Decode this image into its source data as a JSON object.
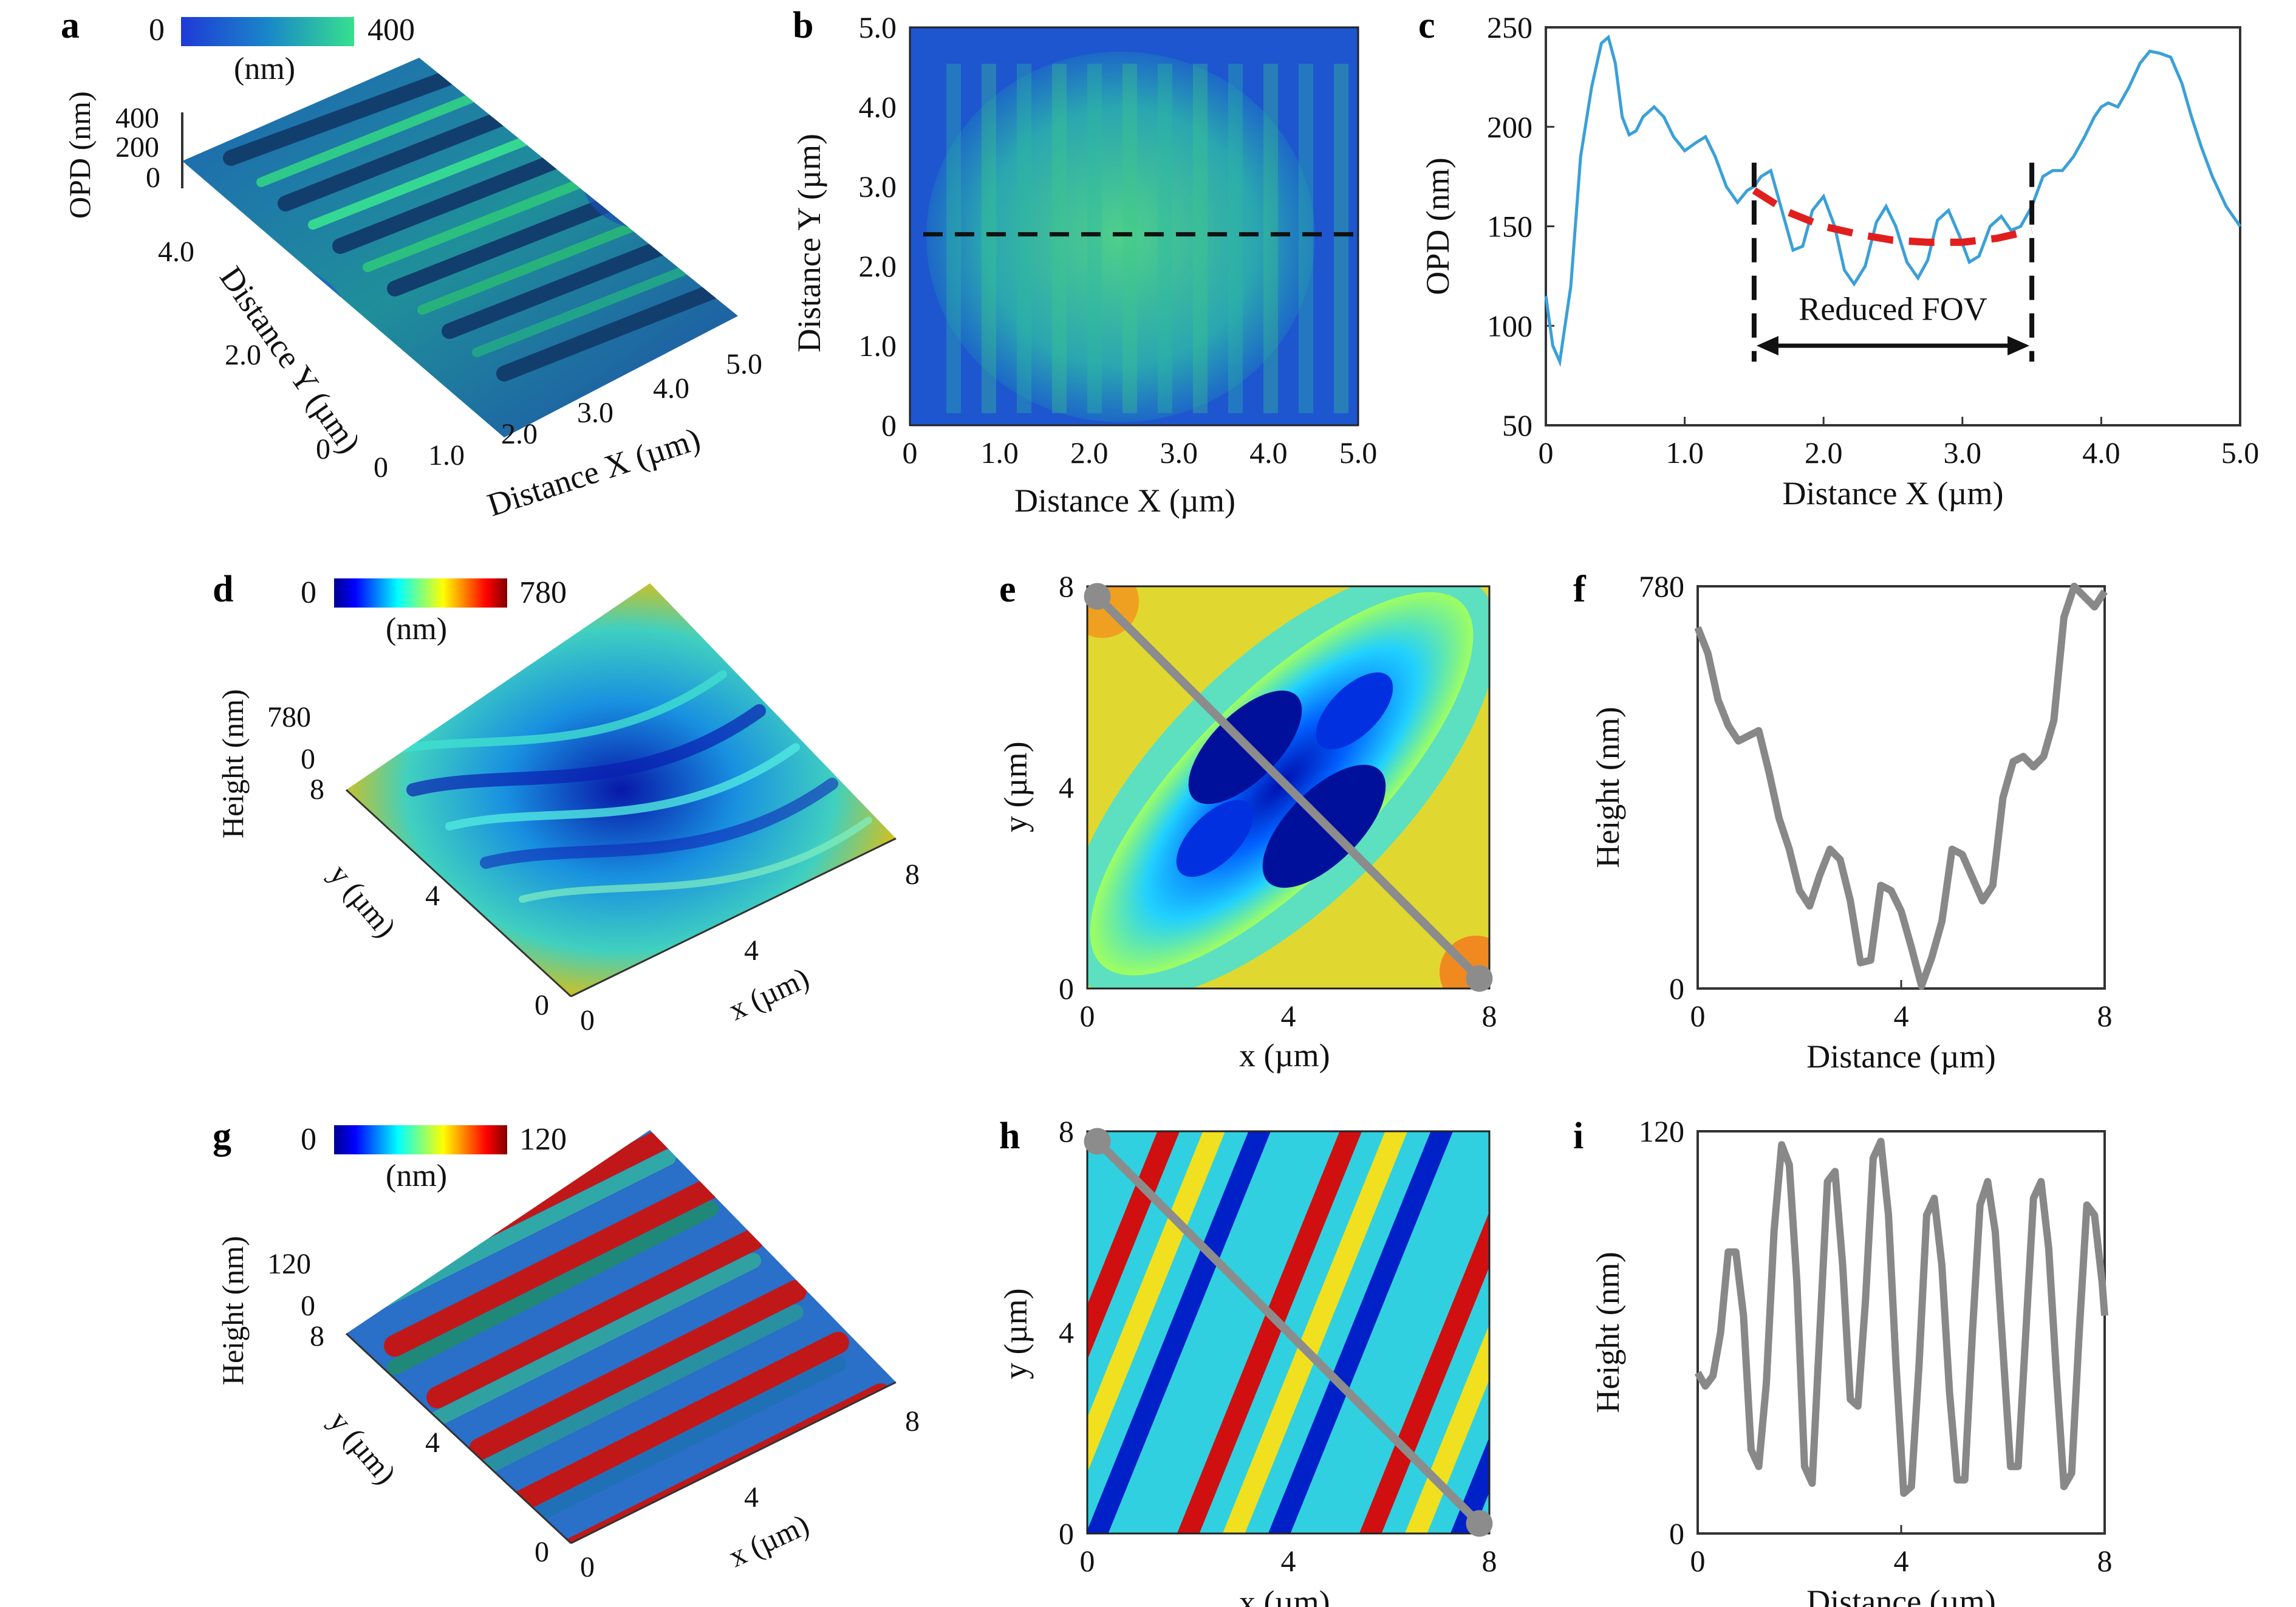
{
  "panels": {
    "a": {
      "letter": "a",
      "cbar_min": "0",
      "cbar_max": "400",
      "cbar_unit": "(nm)",
      "zlabel": "OPD (nm)",
      "zticks": [
        "400",
        "200",
        "0"
      ],
      "ylabel": "Distance Y (µm)",
      "yticks": [
        "0",
        "2.0",
        "4.0"
      ],
      "xlabel": "Distance X (µm)",
      "xticks": [
        "0",
        "1.0",
        "2.0",
        "3.0",
        "4.0",
        "5.0"
      ]
    },
    "b": {
      "letter": "b",
      "ylabel": "Distance Y (µm)",
      "xlabel": "Distance X (µm)",
      "yticks": [
        "0",
        "1.0",
        "2.0",
        "3.0",
        "4.0",
        "5.0"
      ],
      "xticks": [
        "0",
        "1.0",
        "2.0",
        "3.0",
        "4.0",
        "5.0"
      ]
    },
    "c": {
      "letter": "c",
      "annotation": "Reduced FOV"
    },
    "d": {
      "letter": "d",
      "cbar_min": "0",
      "cbar_max": "780",
      "cbar_unit": "(nm)",
      "zlabel": "Height (nm)",
      "zticks": [
        "780",
        "0"
      ],
      "ylabel": "y (µm)",
      "yticks": [
        "0",
        "4",
        "8"
      ],
      "xlabel": "x (µm)",
      "xticks": [
        "0",
        "4",
        "8"
      ]
    },
    "e": {
      "letter": "e",
      "xlabel": "x (µm)",
      "ylabel": "y (µm)",
      "xticks": [
        "0",
        "4",
        "8"
      ],
      "yticks": [
        "0",
        "4",
        "8"
      ]
    },
    "f": {
      "letter": "f"
    },
    "g": {
      "letter": "g",
      "cbar_min": "0",
      "cbar_max": "120",
      "cbar_unit": "(nm)",
      "zlabel": "Height (nm)",
      "zticks": [
        "120",
        "0"
      ],
      "ylabel": "y (µm)",
      "yticks": [
        "0",
        "4",
        "8"
      ],
      "xlabel": "x (µm)",
      "xticks": [
        "0",
        "4",
        "8"
      ]
    },
    "h": {
      "letter": "h",
      "xlabel": "x (µm)",
      "ylabel": "y (µm)",
      "xticks": [
        "0",
        "4",
        "8"
      ],
      "yticks": [
        "0",
        "4",
        "8"
      ]
    },
    "i": {
      "letter": "i"
    }
  },
  "chart_data": [
    {
      "type": "line",
      "panel": "c",
      "xlabel": "Distance X (µm)",
      "ylabel": "OPD (nm)",
      "xlim": [
        0,
        5
      ],
      "ylim": [
        50,
        250
      ],
      "xticks": [
        "0",
        "1.0",
        "2.0",
        "3.0",
        "4.0",
        "5.0"
      ],
      "yticks": [
        "50",
        "100",
        "150",
        "200",
        "250"
      ],
      "line_color": "#3aa0d8",
      "series": [
        {
          "x": [
            0,
            0.05,
            0.1,
            0.18,
            0.25,
            0.33,
            0.4,
            0.45,
            0.5,
            0.55,
            0.6,
            0.65,
            0.7,
            0.78,
            0.85,
            0.92,
            1.0,
            1.08,
            1.15,
            1.22,
            1.3,
            1.38,
            1.45,
            1.5,
            1.55,
            1.62,
            1.7,
            1.78,
            1.85,
            1.92,
            2.0,
            2.08,
            2.15,
            2.22,
            2.3,
            2.38,
            2.45,
            2.52,
            2.6,
            2.68,
            2.75,
            2.82,
            2.9,
            2.98,
            3.05,
            3.12,
            3.2,
            3.28,
            3.35,
            3.42,
            3.5,
            3.58,
            3.65,
            3.72,
            3.8,
            3.88,
            3.95,
            4.0,
            4.05,
            4.12,
            4.2,
            4.28,
            4.35,
            4.42,
            4.5,
            4.58,
            4.65,
            4.72,
            4.8,
            4.9,
            5.0
          ],
          "y": [
            115,
            90,
            82,
            120,
            185,
            220,
            242,
            245,
            232,
            205,
            196,
            198,
            205,
            210,
            205,
            195,
            188,
            192,
            195,
            185,
            170,
            162,
            168,
            170,
            175,
            178,
            158,
            138,
            140,
            158,
            165,
            150,
            128,
            121,
            130,
            152,
            160,
            150,
            132,
            124,
            133,
            153,
            158,
            145,
            132,
            135,
            150,
            155,
            148,
            150,
            160,
            175,
            178,
            178,
            185,
            195,
            205,
            210,
            212,
            210,
            220,
            232,
            238,
            237,
            235,
            222,
            205,
            190,
            175,
            160,
            150
          ]
        },
        {
          "name": "",
          "style": "dashed",
          "color": "#e11e1e",
          "x": [
            1.5,
            1.75,
            2.0,
            2.25,
            2.5,
            2.75,
            3.0,
            3.25,
            3.5
          ],
          "y": [
            168,
            157,
            150,
            146,
            143,
            142,
            142,
            144,
            148
          ]
        }
      ],
      "reduced_fov": [
        1.5,
        3.5
      ]
    },
    {
      "type": "line",
      "panel": "f",
      "xlabel": "Distance (µm)",
      "ylabel": "Height (nm)",
      "xlim": [
        0,
        8
      ],
      "ylim": [
        0,
        780
      ],
      "xticks": [
        "0",
        "4",
        "8"
      ],
      "yticks": [
        "0",
        "780"
      ],
      "line_color": "#888888",
      "series": [
        {
          "x": [
            0,
            0.2,
            0.4,
            0.6,
            0.8,
            1.0,
            1.2,
            1.4,
            1.6,
            1.8,
            2.0,
            2.2,
            2.4,
            2.6,
            2.8,
            3.0,
            3.2,
            3.4,
            3.6,
            3.8,
            4.0,
            4.2,
            4.4,
            4.6,
            4.8,
            5.0,
            5.2,
            5.4,
            5.6,
            5.8,
            6.0,
            6.2,
            6.4,
            6.6,
            6.8,
            7.0,
            7.2,
            7.4,
            7.6,
            7.8,
            8.0
          ],
          "y": [
            700,
            650,
            560,
            510,
            480,
            490,
            500,
            420,
            330,
            270,
            190,
            160,
            220,
            270,
            250,
            170,
            50,
            55,
            200,
            190,
            150,
            80,
            5,
            60,
            130,
            270,
            260,
            215,
            170,
            200,
            370,
            440,
            450,
            430,
            450,
            520,
            720,
            780,
            760,
            740,
            770
          ]
        }
      ]
    },
    {
      "type": "line",
      "panel": "i",
      "xlabel": "Distance (µm)",
      "ylabel": "Height (nm)",
      "xlim": [
        0,
        8
      ],
      "ylim": [
        0,
        120
      ],
      "xticks": [
        "0",
        "4",
        "8"
      ],
      "yticks": [
        "0",
        "120"
      ],
      "line_color": "#888888",
      "series": [
        {
          "x": [
            0,
            0.15,
            0.3,
            0.45,
            0.6,
            0.75,
            0.9,
            1.05,
            1.2,
            1.35,
            1.5,
            1.65,
            1.8,
            1.95,
            2.1,
            2.25,
            2.4,
            2.55,
            2.7,
            2.85,
            3.0,
            3.15,
            3.3,
            3.45,
            3.6,
            3.75,
            3.9,
            4.05,
            4.2,
            4.35,
            4.5,
            4.65,
            4.8,
            4.95,
            5.1,
            5.25,
            5.4,
            5.55,
            5.7,
            5.85,
            6.0,
            6.15,
            6.3,
            6.45,
            6.6,
            6.75,
            6.9,
            7.05,
            7.2,
            7.35,
            7.5,
            7.65,
            7.8,
            7.95,
            8.0
          ],
          "y": [
            48,
            44,
            47,
            60,
            84,
            84,
            65,
            25,
            20,
            45,
            90,
            116,
            110,
            75,
            20,
            15,
            60,
            105,
            108,
            80,
            40,
            38,
            70,
            112,
            117,
            95,
            50,
            12,
            14,
            50,
            95,
            100,
            80,
            42,
            16,
            16,
            60,
            98,
            105,
            90,
            55,
            20,
            20,
            60,
            100,
            105,
            85,
            48,
            14,
            18,
            60,
            98,
            95,
            75,
            65
          ]
        }
      ]
    },
    {
      "type": "heatmap",
      "panel": "b",
      "xlim": [
        0,
        5
      ],
      "ylim": [
        0,
        5
      ],
      "colormap": "blue-green",
      "profile_line_y": 2.4
    },
    {
      "type": "heatmap",
      "panel": "e",
      "xlim": [
        0,
        8
      ],
      "ylim": [
        0,
        8
      ],
      "colormap": "jet",
      "profile_line": [
        [
          0.2,
          7.8
        ],
        [
          7.8,
          0.2
        ]
      ]
    },
    {
      "type": "heatmap",
      "panel": "h",
      "xlim": [
        0,
        8
      ],
      "ylim": [
        0,
        8
      ],
      "colormap": "jet",
      "profile_line": [
        [
          0.2,
          7.8
        ],
        [
          7.8,
          0.2
        ]
      ]
    }
  ]
}
